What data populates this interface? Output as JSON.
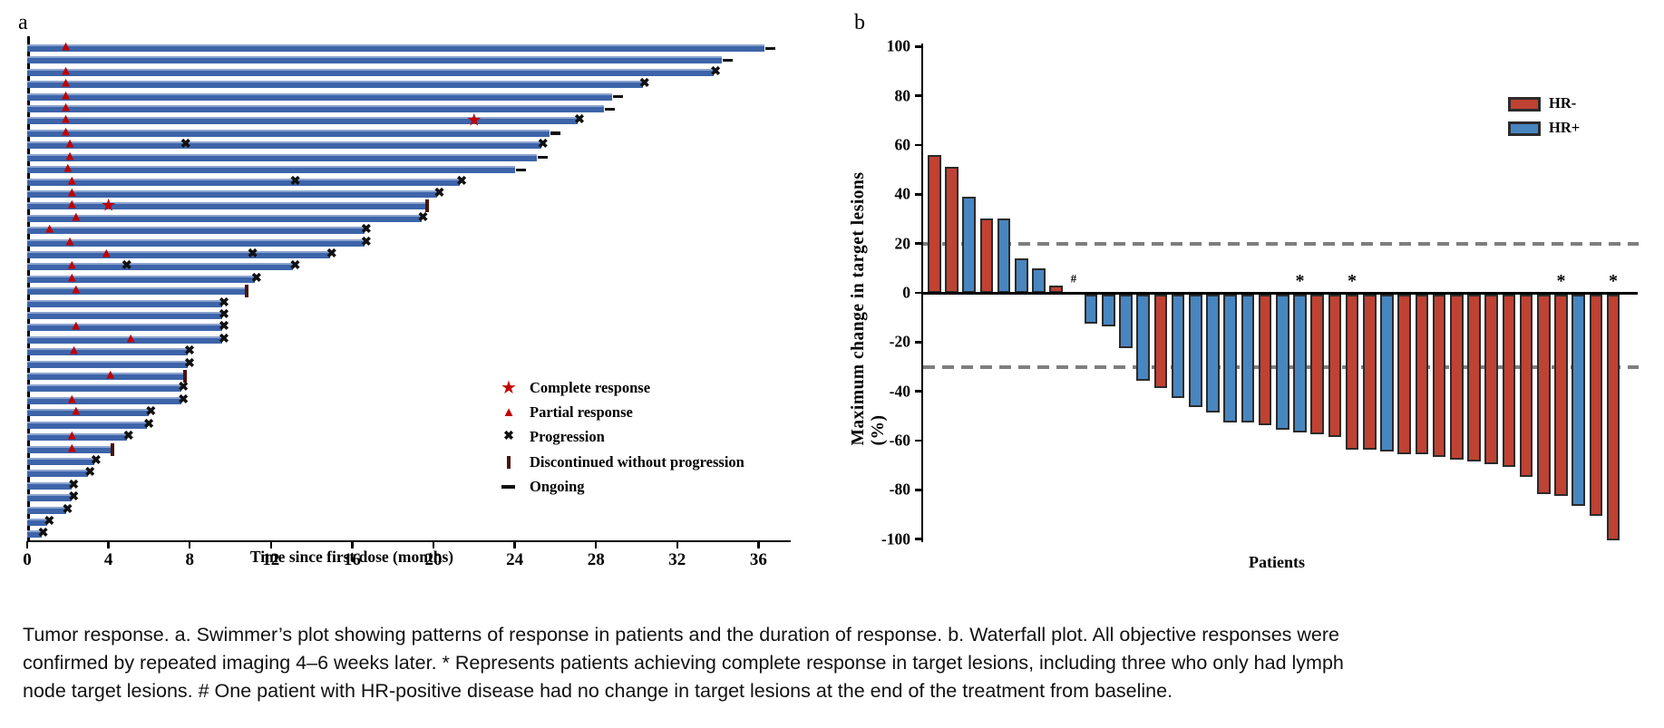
{
  "figure": {
    "panels": [
      {
        "label": "a"
      },
      {
        "label": "b"
      }
    ]
  },
  "colors": {
    "swimmer_bar": "#3D64A9",
    "response_red": "#C00000",
    "progression_black": "#111111",
    "discontinued_maroon": "#4A120C",
    "hr_negative_red": "#BF4233",
    "hr_positive_blue": "#4886C0",
    "bar_outline": "#2B2B2B",
    "dashed_gray": "#7E7E7E",
    "axis_black": "#000000"
  },
  "chart_data": [
    {
      "panel": "a",
      "type": "bar",
      "subtype": "swimmer",
      "xlabel": "Time since first dose (months)",
      "xlim": [
        0,
        37.5
      ],
      "xticks": [
        0,
        4,
        8,
        12,
        16,
        20,
        24,
        28,
        32,
        36
      ],
      "grid": false,
      "legend_position": "lower-right-inside",
      "legend": [
        {
          "glyph": "star",
          "label": "Complete response"
        },
        {
          "glyph": "triangle",
          "label": "Partial response"
        },
        {
          "glyph": "x",
          "label": "Progression"
        },
        {
          "glyph": "pipe",
          "label": "Discontinued without progression"
        },
        {
          "glyph": "dash",
          "label": "Ongoing"
        }
      ],
      "patients": [
        {
          "duration": 36.3,
          "partial_response": 1.9,
          "complete_response": null,
          "progression_marks": [],
          "status": "ongoing"
        },
        {
          "duration": 34.2,
          "partial_response": null,
          "complete_response": null,
          "progression_marks": [],
          "status": "ongoing"
        },
        {
          "duration": 33.8,
          "partial_response": 1.9,
          "complete_response": null,
          "progression_marks": [],
          "status": "progression"
        },
        {
          "duration": 30.3,
          "partial_response": 1.9,
          "complete_response": null,
          "progression_marks": [],
          "status": "progression"
        },
        {
          "duration": 28.8,
          "partial_response": 1.9,
          "complete_response": null,
          "progression_marks": [],
          "status": "ongoing"
        },
        {
          "duration": 28.4,
          "partial_response": 1.9,
          "complete_response": null,
          "progression_marks": [],
          "status": "ongoing"
        },
        {
          "duration": 27.1,
          "partial_response": 1.9,
          "complete_response": 22.0,
          "progression_marks": [],
          "status": "progression"
        },
        {
          "duration": 25.7,
          "partial_response": 1.9,
          "complete_response": null,
          "progression_marks": [],
          "status": "ongoing"
        },
        {
          "duration": 25.3,
          "partial_response": 2.1,
          "complete_response": null,
          "progression_marks": [
            7.8
          ],
          "status": "progression"
        },
        {
          "duration": 25.1,
          "partial_response": 2.1,
          "complete_response": null,
          "progression_marks": [],
          "status": "ongoing"
        },
        {
          "duration": 24.0,
          "partial_response": 2.0,
          "complete_response": null,
          "progression_marks": [],
          "status": "ongoing"
        },
        {
          "duration": 21.3,
          "partial_response": 2.2,
          "complete_response": null,
          "progression_marks": [
            13.2
          ],
          "status": "progression"
        },
        {
          "duration": 20.2,
          "partial_response": 2.2,
          "complete_response": null,
          "progression_marks": [],
          "status": "progression"
        },
        {
          "duration": 19.6,
          "partial_response": 2.2,
          "complete_response": 4.0,
          "progression_marks": [],
          "status": "discontinued"
        },
        {
          "duration": 19.4,
          "partial_response": 2.4,
          "complete_response": null,
          "progression_marks": [],
          "status": "progression"
        },
        {
          "duration": 16.6,
          "partial_response": 1.1,
          "complete_response": null,
          "progression_marks": [],
          "status": "progression"
        },
        {
          "duration": 16.6,
          "partial_response": 2.1,
          "complete_response": null,
          "progression_marks": [],
          "status": "progression"
        },
        {
          "duration": 14.9,
          "partial_response": 3.9,
          "complete_response": null,
          "progression_marks": [
            11.1
          ],
          "status": "progression"
        },
        {
          "duration": 13.1,
          "partial_response": 2.2,
          "complete_response": null,
          "progression_marks": [
            4.9
          ],
          "status": "progression"
        },
        {
          "duration": 11.2,
          "partial_response": 2.2,
          "complete_response": null,
          "progression_marks": [],
          "status": "progression"
        },
        {
          "duration": 10.7,
          "partial_response": 2.4,
          "complete_response": null,
          "progression_marks": [],
          "status": "discontinued"
        },
        {
          "duration": 9.6,
          "partial_response": null,
          "complete_response": null,
          "progression_marks": [],
          "status": "progression"
        },
        {
          "duration": 9.6,
          "partial_response": null,
          "complete_response": null,
          "progression_marks": [],
          "status": "progression"
        },
        {
          "duration": 9.6,
          "partial_response": 2.4,
          "complete_response": null,
          "progression_marks": [],
          "status": "progression"
        },
        {
          "duration": 9.6,
          "partial_response": 5.1,
          "complete_response": null,
          "progression_marks": [],
          "status": "progression"
        },
        {
          "duration": 7.9,
          "partial_response": 2.3,
          "complete_response": null,
          "progression_marks": [],
          "status": "progression"
        },
        {
          "duration": 7.9,
          "partial_response": null,
          "complete_response": null,
          "progression_marks": [],
          "status": "progression"
        },
        {
          "duration": 7.7,
          "partial_response": 4.1,
          "complete_response": null,
          "progression_marks": [],
          "status": "discontinued"
        },
        {
          "duration": 7.6,
          "partial_response": null,
          "complete_response": null,
          "progression_marks": [],
          "status": "progression"
        },
        {
          "duration": 7.6,
          "partial_response": 2.2,
          "complete_response": null,
          "progression_marks": [],
          "status": "progression"
        },
        {
          "duration": 6.0,
          "partial_response": 2.4,
          "complete_response": null,
          "progression_marks": [],
          "status": "progression"
        },
        {
          "duration": 5.9,
          "partial_response": null,
          "complete_response": null,
          "progression_marks": [],
          "status": "progression"
        },
        {
          "duration": 4.9,
          "partial_response": 2.2,
          "complete_response": null,
          "progression_marks": [],
          "status": "progression"
        },
        {
          "duration": 4.1,
          "partial_response": 2.2,
          "complete_response": null,
          "progression_marks": [],
          "status": "discontinued"
        },
        {
          "duration": 3.3,
          "partial_response": null,
          "complete_response": null,
          "progression_marks": [],
          "status": "progression"
        },
        {
          "duration": 3.0,
          "partial_response": null,
          "complete_response": null,
          "progression_marks": [],
          "status": "progression"
        },
        {
          "duration": 2.2,
          "partial_response": null,
          "complete_response": null,
          "progression_marks": [],
          "status": "progression"
        },
        {
          "duration": 2.2,
          "partial_response": null,
          "complete_response": null,
          "progression_marks": [],
          "status": "progression"
        },
        {
          "duration": 1.9,
          "partial_response": null,
          "complete_response": null,
          "progression_marks": [],
          "status": "progression"
        },
        {
          "duration": 1.0,
          "partial_response": null,
          "complete_response": null,
          "progression_marks": [],
          "status": "progression"
        },
        {
          "duration": 0.7,
          "partial_response": null,
          "complete_response": null,
          "progression_marks": [],
          "status": "progression"
        }
      ]
    },
    {
      "panel": "b",
      "type": "bar",
      "subtype": "waterfall",
      "xlabel": "Patients",
      "ylabel": "Maximum change in target lesions (%)",
      "ylim": [
        -100,
        100
      ],
      "yticks": [
        100,
        80,
        60,
        40,
        20,
        0,
        -20,
        -40,
        -60,
        -80,
        -100
      ],
      "reference_lines": [
        20,
        -30
      ],
      "grid": false,
      "legend_position": "upper-right-inside",
      "legend": [
        {
          "label": "HR-",
          "color": "#BF4233"
        },
        {
          "label": "HR+",
          "color": "#4886C0"
        }
      ],
      "bars": [
        {
          "value": 56,
          "group": "HR-",
          "marker": null
        },
        {
          "value": 51,
          "group": "HR-",
          "marker": null
        },
        {
          "value": 39,
          "group": "HR+",
          "marker": null
        },
        {
          "value": 30,
          "group": "HR-",
          "marker": null
        },
        {
          "value": 30,
          "group": "HR+",
          "marker": null
        },
        {
          "value": 14,
          "group": "HR+",
          "marker": null
        },
        {
          "value": 10,
          "group": "HR+",
          "marker": null
        },
        {
          "value": 3,
          "group": "HR-",
          "marker": null
        },
        {
          "value": 0,
          "group": "HR+",
          "marker": "#"
        },
        {
          "value": -12,
          "group": "HR+",
          "marker": null
        },
        {
          "value": -13,
          "group": "HR+",
          "marker": null
        },
        {
          "value": -22,
          "group": "HR+",
          "marker": null
        },
        {
          "value": -35,
          "group": "HR+",
          "marker": null
        },
        {
          "value": -38,
          "group": "HR-",
          "marker": null
        },
        {
          "value": -42,
          "group": "HR+",
          "marker": null
        },
        {
          "value": -46,
          "group": "HR+",
          "marker": null
        },
        {
          "value": -48,
          "group": "HR+",
          "marker": null
        },
        {
          "value": -52,
          "group": "HR+",
          "marker": null
        },
        {
          "value": -52,
          "group": "HR+",
          "marker": null
        },
        {
          "value": -53,
          "group": "HR-",
          "marker": null
        },
        {
          "value": -55,
          "group": "HR+",
          "marker": null
        },
        {
          "value": -56,
          "group": "HR+",
          "marker": "*"
        },
        {
          "value": -57,
          "group": "HR-",
          "marker": null
        },
        {
          "value": -58,
          "group": "HR-",
          "marker": null
        },
        {
          "value": -63,
          "group": "HR-",
          "marker": "*"
        },
        {
          "value": -63,
          "group": "HR-",
          "marker": null
        },
        {
          "value": -64,
          "group": "HR+",
          "marker": null
        },
        {
          "value": -65,
          "group": "HR-",
          "marker": null
        },
        {
          "value": -65,
          "group": "HR-",
          "marker": null
        },
        {
          "value": -66,
          "group": "HR-",
          "marker": null
        },
        {
          "value": -67,
          "group": "HR-",
          "marker": null
        },
        {
          "value": -68,
          "group": "HR-",
          "marker": null
        },
        {
          "value": -69,
          "group": "HR-",
          "marker": null
        },
        {
          "value": -70,
          "group": "HR-",
          "marker": null
        },
        {
          "value": -74,
          "group": "HR-",
          "marker": null
        },
        {
          "value": -81,
          "group": "HR-",
          "marker": null
        },
        {
          "value": -82,
          "group": "HR-",
          "marker": "*"
        },
        {
          "value": -86,
          "group": "HR+",
          "marker": null
        },
        {
          "value": -90,
          "group": "HR-",
          "marker": null
        },
        {
          "value": -100,
          "group": "HR-",
          "marker": "*"
        }
      ]
    }
  ],
  "caption": {
    "lines": [
      "Tumor response. a. Swimmer’s plot showing patterns of response in patients and the duration of response. b. Waterfall plot. All objective responses were",
      "confirmed by repeated imaging 4–6 weeks later. * Represents patients achieving complete response in target lesions, including three who only had lymph",
      "node target lesions. # One patient with HR-positive disease had no change in target lesions at the end of the treatment from baseline."
    ]
  }
}
